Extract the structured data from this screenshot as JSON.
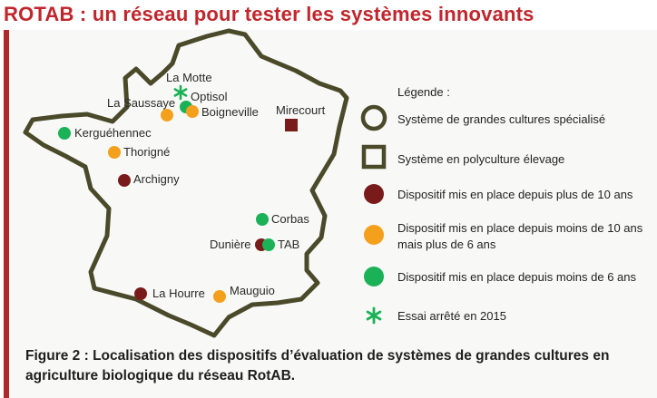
{
  "title": "ROTAB : un réseau pour tester les systèmes innovants",
  "colors": {
    "accent": "#c0262c",
    "outline": "#4a4a2a",
    "dark_red": "#7a1b1b",
    "orange": "#f4a01c",
    "green": "#1bb257",
    "star": "#1bb257"
  },
  "sites": [
    {
      "name": "La Motte",
      "status": "stopped-2015"
    },
    {
      "name": "Optisol",
      "status": "green"
    },
    {
      "name": "La Saussaye",
      "status": "orange"
    },
    {
      "name": "Boigneville",
      "status": "orange"
    },
    {
      "name": "Mirecourt",
      "status": "dark-red-square"
    },
    {
      "name": "Kerguéhennec",
      "status": "green"
    },
    {
      "name": "Thorigné",
      "status": "orange"
    },
    {
      "name": "Archigny",
      "status": "dark-red"
    },
    {
      "name": "Corbas",
      "status": "green"
    },
    {
      "name": "Dunière",
      "status": "dark-red"
    },
    {
      "name": "TAB",
      "status": "green"
    },
    {
      "name": "La Hourre",
      "status": "dark-red"
    },
    {
      "name": "Mauguio",
      "status": "orange"
    }
  ],
  "legend": {
    "title": "Légende :",
    "items": [
      {
        "symbol": "circle-outline",
        "text": "Système de grandes cultures spécialisé"
      },
      {
        "symbol": "square-outline",
        "text": "Système en polyculture élevage"
      },
      {
        "symbol": "dot-dark-red",
        "text": "Dispositif mis en place depuis plus de 10 ans"
      },
      {
        "symbol": "dot-orange",
        "text": "Dispositif mis en place depuis moins de 10 ans mais plus de 6 ans"
      },
      {
        "symbol": "dot-green",
        "text": "Dispositif mis en place depuis moins de 6 ans"
      },
      {
        "symbol": "asterisk-icon",
        "text": "Essai arrêté en 2015"
      }
    ]
  },
  "caption": "Figure 2 : Localisation des dispositifs d’évaluation de systèmes de grandes cultures en agriculture biologique du réseau RotAB."
}
